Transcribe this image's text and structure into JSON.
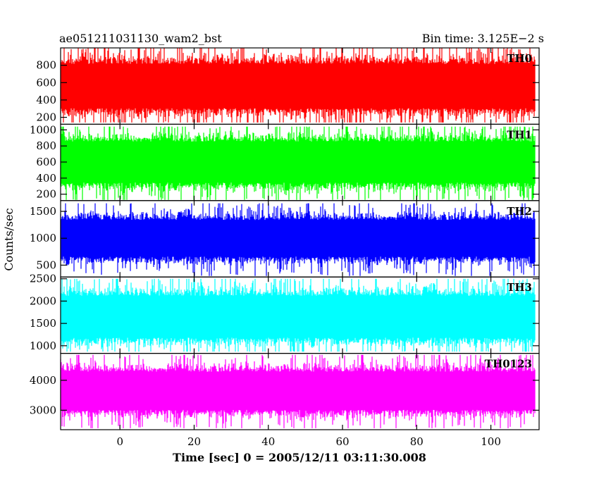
{
  "chart_data": {
    "type": "line",
    "title": "ae051211031130_wam2_bst",
    "subtitle": "Bin time: 3.125E−2 s",
    "xlabel": "Time [sec] 0 = 2005/12/11 03:11:30.008",
    "ylabel": "Counts/sec",
    "xlim": [
      -16,
      113
    ],
    "data_range": [
      -16,
      112
    ],
    "x_ticks": [
      0,
      20,
      40,
      60,
      80,
      100
    ],
    "grid": false,
    "panels": [
      {
        "name": "TH0",
        "color": "#ff0000",
        "ylim": [
          120,
          1000
        ],
        "y_ticks": [
          200,
          400,
          600,
          800
        ],
        "mean": 560,
        "band": [
          200,
          880
        ],
        "min": 140,
        "max": 1000
      },
      {
        "name": "TH1",
        "color": "#00ff00",
        "ylim": [
          120,
          1070
        ],
        "y_ticks": [
          200,
          400,
          600,
          800,
          1000
        ],
        "mean": 600,
        "band": [
          250,
          930
        ],
        "min": 130,
        "max": 1040
      },
      {
        "name": "TH2",
        "color": "#0000ff",
        "ylim": [
          280,
          1700
        ],
        "y_ticks": [
          500,
          1000,
          1500
        ],
        "mean": 1000,
        "band": [
          560,
          1470
        ],
        "min": 300,
        "max": 1650
      },
      {
        "name": "TH3",
        "color": "#00ffff",
        "ylim": [
          830,
          2540
        ],
        "y_ticks": [
          1000,
          1500,
          2000,
          2500
        ],
        "mean": 1650,
        "band": [
          1050,
          2300
        ],
        "min": 870,
        "max": 2500
      },
      {
        "name": "TH0123",
        "color": "#ff00ff",
        "ylim": [
          2350,
          4900
        ],
        "y_ticks": [
          3000,
          4000
        ],
        "mean": 3650,
        "band": [
          2800,
          4500
        ],
        "min": 2400,
        "max": 4850
      }
    ]
  }
}
